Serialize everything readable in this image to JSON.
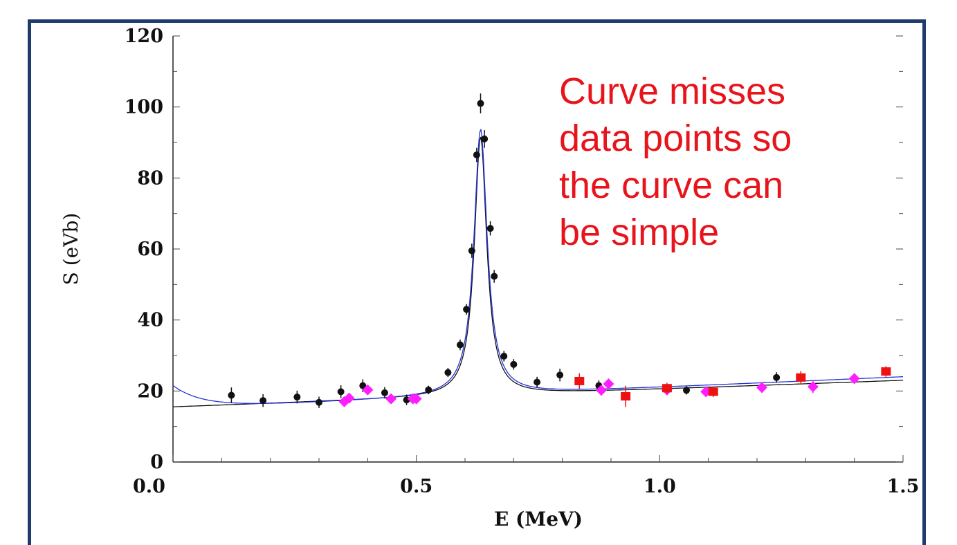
{
  "chart_data": {
    "type": "scatter",
    "xlabel": "E (MeV)",
    "ylabel": "S (eVb)",
    "xlim": [
      0.0,
      1.5
    ],
    "ylim": [
      0,
      120
    ],
    "x_ticks": [
      "0.0",
      "0.5",
      "1.0",
      "1.5"
    ],
    "y_ticks": [
      "0",
      "20",
      "40",
      "60",
      "80",
      "100",
      "120"
    ],
    "annotation_lines": [
      "Curve misses",
      "data points so",
      "the curve can",
      "be simple"
    ],
    "colors": {
      "black": "#111111",
      "magenta": "#ff1eff",
      "red": "#ee1111",
      "blue": "#2233dd",
      "annotation": "#e8141c",
      "frame": "#1f3b6e"
    },
    "series": [
      {
        "marker": "circle",
        "color": "#111111",
        "points": [
          {
            "x": 0.12,
            "y": 18.8,
            "err": 2.2
          },
          {
            "x": 0.185,
            "y": 17.3,
            "err": 1.8
          },
          {
            "x": 0.255,
            "y": 18.3,
            "err": 1.8
          },
          {
            "x": 0.3,
            "y": 16.8,
            "err": 1.6
          },
          {
            "x": 0.345,
            "y": 19.8,
            "err": 1.8
          },
          {
            "x": 0.39,
            "y": 21.5,
            "err": 1.8
          },
          {
            "x": 0.435,
            "y": 19.5,
            "err": 1.6
          },
          {
            "x": 0.48,
            "y": 17.5,
            "err": 1.5
          },
          {
            "x": 0.525,
            "y": 20.3,
            "err": 1.2
          },
          {
            "x": 0.565,
            "y": 25.2,
            "err": 1.3
          },
          {
            "x": 0.59,
            "y": 33.0,
            "err": 1.5
          },
          {
            "x": 0.603,
            "y": 43.0,
            "err": 1.5
          },
          {
            "x": 0.614,
            "y": 59.5,
            "err": 2.0
          },
          {
            "x": 0.624,
            "y": 86.5,
            "err": 2.0
          },
          {
            "x": 0.632,
            "y": 101.0,
            "err": 2.8
          },
          {
            "x": 0.64,
            "y": 91.0,
            "err": 2.5
          },
          {
            "x": 0.652,
            "y": 65.8,
            "err": 2.0
          },
          {
            "x": 0.66,
            "y": 52.3,
            "err": 1.8
          },
          {
            "x": 0.68,
            "y": 29.8,
            "err": 1.5
          },
          {
            "x": 0.7,
            "y": 27.5,
            "err": 1.5
          },
          {
            "x": 0.748,
            "y": 22.5,
            "err": 1.5
          },
          {
            "x": 0.795,
            "y": 24.5,
            "err": 1.8
          },
          {
            "x": 0.875,
            "y": 21.5,
            "err": 1.5
          },
          {
            "x": 1.055,
            "y": 20.2,
            "err": 1.2
          },
          {
            "x": 1.24,
            "y": 23.8,
            "err": 1.5
          }
        ]
      },
      {
        "marker": "diamond",
        "color": "#ff1eff",
        "points": [
          {
            "x": 0.352,
            "y": 17.0,
            "err": 1.2
          },
          {
            "x": 0.362,
            "y": 18.0,
            "err": 1.2
          },
          {
            "x": 0.4,
            "y": 20.3,
            "err": 1.2
          },
          {
            "x": 0.448,
            "y": 17.8,
            "err": 1.2
          },
          {
            "x": 0.493,
            "y": 17.8,
            "err": 1.5
          },
          {
            "x": 0.5,
            "y": 17.8,
            "err": 1.5
          },
          {
            "x": 0.88,
            "y": 20.2,
            "err": 1.5
          },
          {
            "x": 0.895,
            "y": 22.0,
            "err": 1.5
          },
          {
            "x": 1.015,
            "y": 20.3,
            "err": 1.5
          },
          {
            "x": 1.095,
            "y": 19.8,
            "err": 1.2
          },
          {
            "x": 1.21,
            "y": 21.0,
            "err": 1.5
          },
          {
            "x": 1.315,
            "y": 21.2,
            "err": 1.8
          },
          {
            "x": 1.4,
            "y": 23.5,
            "err": 1.5
          }
        ]
      },
      {
        "marker": "square",
        "color": "#ee1111",
        "points": [
          {
            "x": 0.835,
            "y": 22.8,
            "err": 2.2
          },
          {
            "x": 0.93,
            "y": 18.5,
            "err": 3.0
          },
          {
            "x": 1.015,
            "y": 20.8,
            "err": 1.5
          },
          {
            "x": 1.11,
            "y": 19.8,
            "err": 1.5
          },
          {
            "x": 1.29,
            "y": 23.8,
            "err": 1.8
          },
          {
            "x": 1.465,
            "y": 25.5,
            "err": 1.5
          }
        ]
      }
    ],
    "fit_curves": [
      {
        "color": "#111111",
        "resonance": {
          "E0": 0.632,
          "gamma": 0.031,
          "peak": 73
        },
        "background": {
          "y0": 15.5,
          "slope": 5.0
        },
        "edge_term": 0
      },
      {
        "color": "#2233dd",
        "resonance": {
          "E0": 0.632,
          "gamma": 0.033,
          "peak": 75
        },
        "background": {
          "y0": 15.0,
          "slope": 6.0
        },
        "edge_term": 6.5
      }
    ]
  }
}
